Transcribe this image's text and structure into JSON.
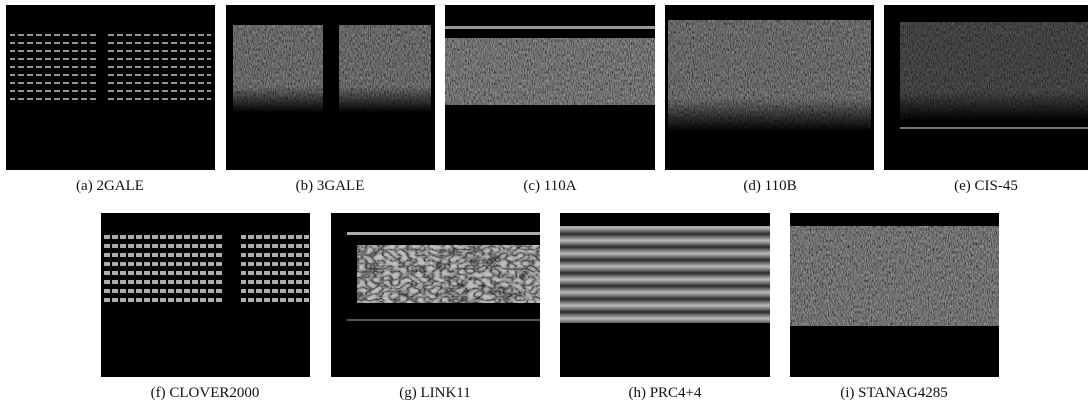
{
  "figure": {
    "panels": [
      {
        "caption": "(a) 2GALE"
      },
      {
        "caption": "(b) 3GALE"
      },
      {
        "caption": "(c) 110A"
      },
      {
        "caption": "(d) 110B"
      },
      {
        "caption": "(e) CIS-45"
      },
      {
        "caption": "(f) CLOVER2000"
      },
      {
        "caption": "(g) LINK11"
      },
      {
        "caption": "(h) PRC4+4"
      },
      {
        "caption": "(i) STANAG4285"
      }
    ]
  }
}
